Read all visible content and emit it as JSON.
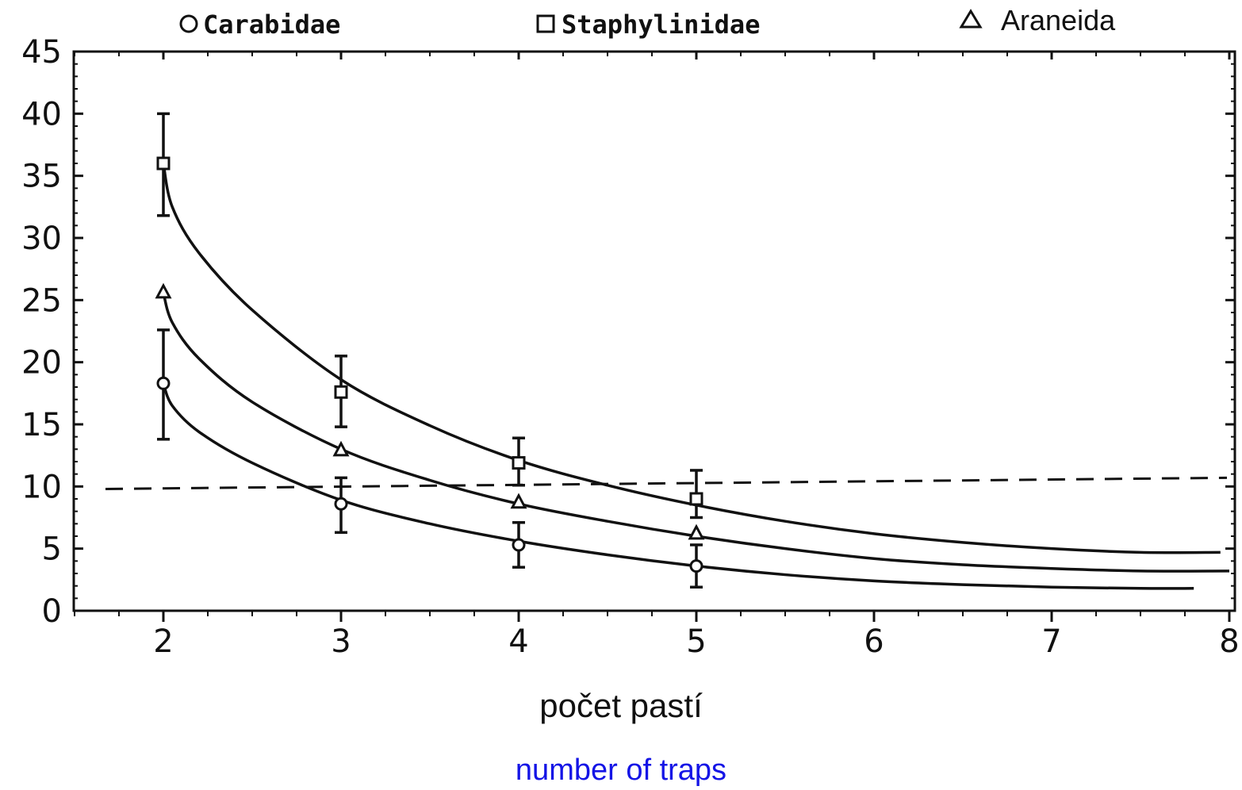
{
  "chart_data": {
    "type": "scatter",
    "x_ticks": [
      2,
      3,
      4,
      5,
      6,
      7,
      8
    ],
    "y_ticks": [
      0,
      5,
      10,
      15,
      20,
      25,
      30,
      35,
      40,
      45
    ],
    "xlim": [
      1.5,
      8
    ],
    "ylim": [
      0,
      45
    ],
    "xlabel": "počet pastí",
    "xlabel_translation": "number of traps",
    "legend_position": "top",
    "series": [
      {
        "name": "Carabidae",
        "marker": "circle",
        "x": [
          2,
          3,
          4,
          5
        ],
        "y": [
          18.3,
          8.6,
          5.3,
          3.6
        ],
        "err_low": [
          13.8,
          6.3,
          3.5,
          1.9
        ],
        "err_high": [
          22.6,
          10.7,
          7.1,
          5.3
        ],
        "curve": {
          "x": [
            2,
            2.05,
            2.2,
            2.5,
            3,
            3.5,
            4,
            4.5,
            5,
            5.5,
            6,
            6.5,
            7,
            7.5,
            7.8
          ],
          "y": [
            18.3,
            16.5,
            14.4,
            11.9,
            8.9,
            7.0,
            5.6,
            4.5,
            3.6,
            2.9,
            2.4,
            2.1,
            1.9,
            1.8,
            1.8
          ]
        }
      },
      {
        "name": "Staphylinidae",
        "marker": "square",
        "x": [
          2,
          3,
          4,
          5
        ],
        "y": [
          36,
          17.6,
          11.9,
          9.0
        ],
        "err_low": [
          31.8,
          14.8,
          10.1,
          7.5
        ],
        "err_high": [
          40.0,
          20.5,
          13.9,
          11.3
        ],
        "curve": {
          "x": [
            2,
            2.05,
            2.2,
            2.5,
            3,
            3.5,
            4,
            4.5,
            5,
            5.5,
            6,
            6.5,
            7,
            7.5,
            7.95
          ],
          "y": [
            36,
            32.5,
            28.8,
            24.2,
            18.6,
            14.9,
            12.1,
            10.1,
            8.5,
            7.2,
            6.2,
            5.5,
            5.0,
            4.7,
            4.7
          ]
        }
      },
      {
        "name": "Araneida",
        "marker": "triangle",
        "x": [
          2,
          3,
          4,
          5
        ],
        "y": [
          25.6,
          12.9,
          8.7,
          6.2
        ],
        "curve": {
          "x": [
            2,
            2.05,
            2.2,
            2.5,
            3,
            3.5,
            4,
            4.5,
            5,
            5.5,
            6,
            6.5,
            7,
            7.5,
            8
          ],
          "y": [
            25.6,
            23.2,
            20.3,
            16.8,
            13.0,
            10.5,
            8.6,
            7.2,
            6.0,
            5.0,
            4.2,
            3.7,
            3.4,
            3.2,
            3.2
          ]
        }
      }
    ],
    "reference_line": {
      "style": "dashed",
      "x": [
        1.5,
        8
      ],
      "y": [
        9.8,
        10.7
      ]
    }
  }
}
